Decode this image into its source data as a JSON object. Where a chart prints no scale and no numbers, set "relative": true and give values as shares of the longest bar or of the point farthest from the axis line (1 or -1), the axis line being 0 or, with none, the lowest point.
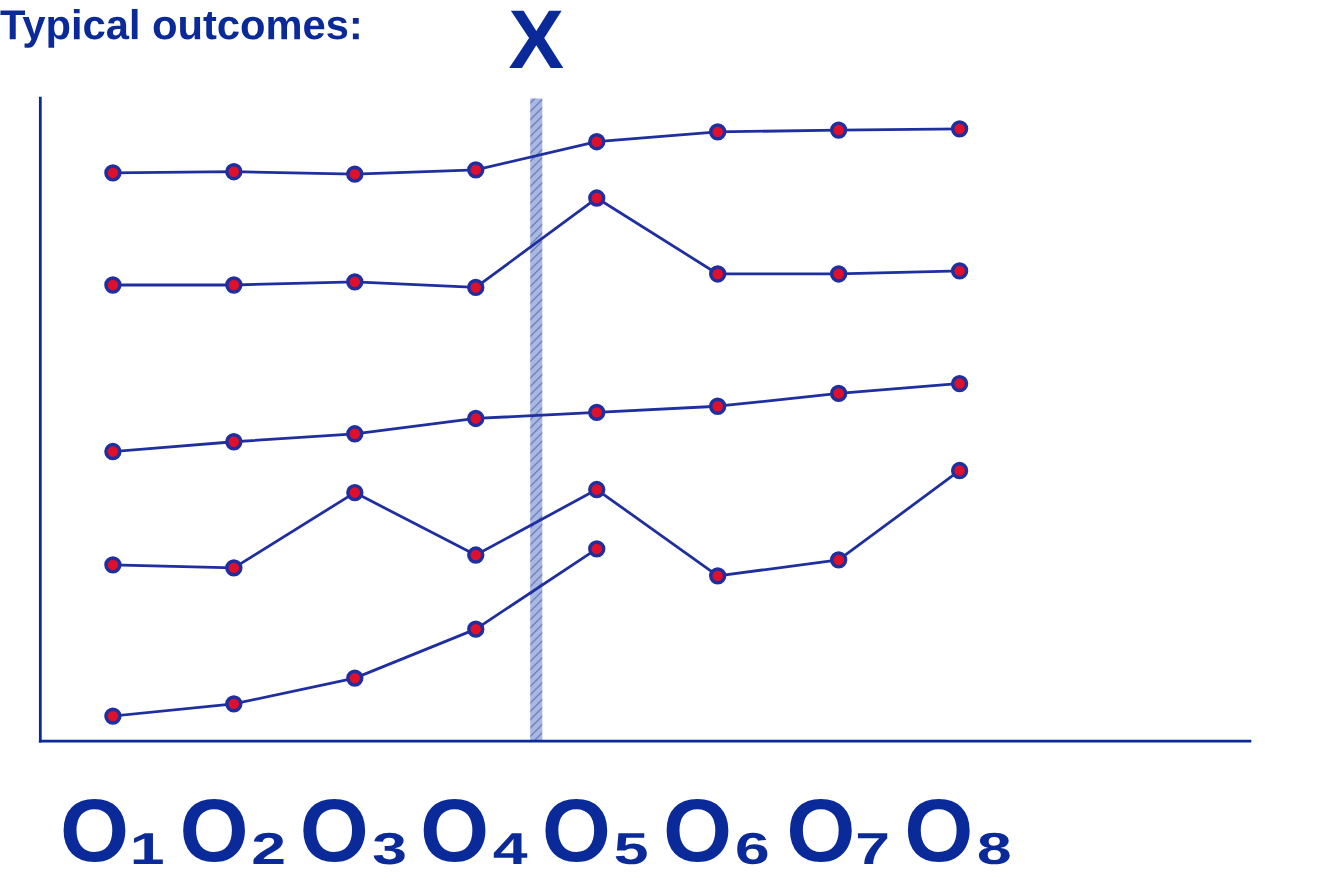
{
  "chart_data": {
    "type": "line",
    "title": "Typical outcomes:",
    "relative": true,
    "tick_labels": "x",
    "marker": "circle",
    "line_style": "solid",
    "grid": false,
    "categories": [
      "O₁",
      "O₂",
      "O₃",
      "O₄",
      "O₅",
      "O₆",
      "O₇",
      "O₈"
    ],
    "bands": [
      {
        "axis": "x",
        "from": "O₄",
        "to": "O₅",
        "label": "X",
        "color": "#a9b8e0"
      }
    ],
    "series": [
      {
        "color": "#1f2f9f",
        "values": [
          0.928,
          0.93,
          0.926,
          0.933,
          0.979,
          0.995,
          0.998,
          1.0
        ]
      },
      {
        "color": "#1f2f9f",
        "values": [
          0.745,
          0.745,
          0.75,
          0.741,
          0.887,
          0.763,
          0.763,
          0.768
        ]
      },
      {
        "color": "#1f2f9f",
        "values": [
          0.473,
          0.489,
          0.502,
          0.527,
          0.537,
          0.547,
          0.568,
          0.584
        ]
      },
      {
        "color": "#1f2f9f",
        "values": [
          0.288,
          0.283,
          0.406,
          0.304,
          0.411,
          0.27,
          0.296,
          0.442
        ]
      },
      {
        "color": "#1f2f9f",
        "values": [
          0.041,
          0.061,
          0.103,
          0.183,
          0.314,
          null,
          null,
          null
        ]
      }
    ]
  }
}
